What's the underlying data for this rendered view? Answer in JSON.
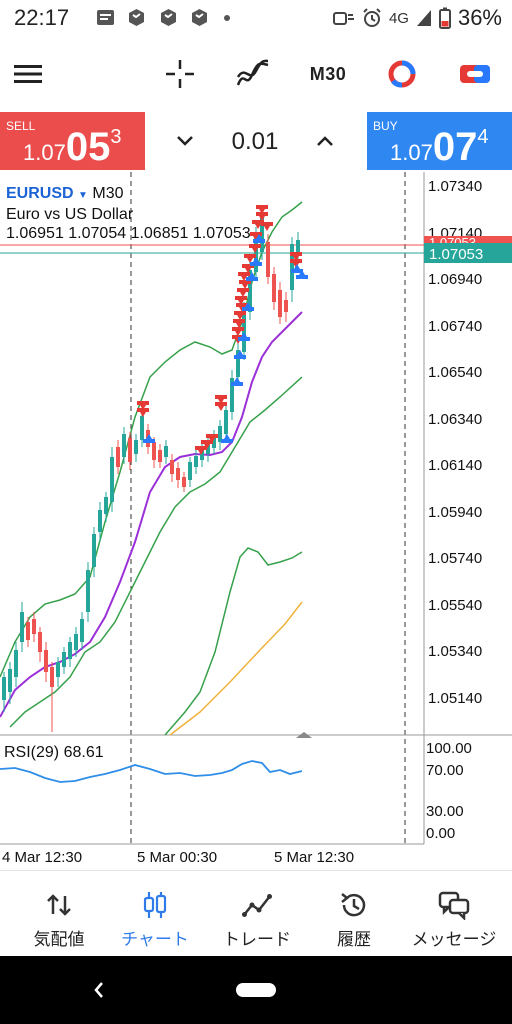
{
  "status_bar": {
    "time": "22:17",
    "network": "4G",
    "battery": "36%"
  },
  "toolbar": {
    "menu_icon": "hamburger-menu-icon",
    "crosshair_icon": "crosshair-icon",
    "indicators_icon": "indicator-icon",
    "timeframe": "M30",
    "objects_icon": "chart-objects-icon",
    "trade_icon": "trade-toggle-icon"
  },
  "trade_bar": {
    "sell_label": "SELL",
    "sell_small": "1.07",
    "sell_big": "05",
    "sell_sup": "3",
    "buy_label": "BUY",
    "buy_small": "1.07",
    "buy_big": "07",
    "buy_sup": "4",
    "volume": "0.01"
  },
  "chart": {
    "symbol": "EURUSD",
    "timeframe": "M30",
    "description": "Euro vs US Dollar",
    "ohlc": "1.06951 1.07054 1.06851 1.07053",
    "price_axis": [
      "1.07340",
      "1.07140",
      "1.06940",
      "1.06740",
      "1.06540",
      "1.06340",
      "1.06140",
      "1.05940",
      "1.05740",
      "1.05540",
      "1.05340",
      "1.05140"
    ],
    "current_price": "1.07053",
    "current_overlap": "1.07053",
    "rsi_label": "RSI(29) 68.61",
    "rsi_axis": [
      "100.00",
      "70.00",
      "30.00",
      "0.00"
    ],
    "time_axis": [
      "4 Mar 12:30",
      "5 Mar 00:30",
      "5 Mar 12:30"
    ],
    "colors": {
      "bull": "#26a69a",
      "bear": "#ef5350",
      "ma_fast": "#9b30d9",
      "bands": "#36a14a",
      "ma_slow": "#f0b23c",
      "rsi": "#2f8ee8",
      "sell_arrow": "#e53935",
      "buy_arrow": "#2979ff"
    }
  },
  "bottom_nav": {
    "items": [
      {
        "label": "気配値",
        "icon": "quotes-arrows-icon"
      },
      {
        "label": "チャート",
        "icon": "chart-candles-icon"
      },
      {
        "label": "トレード",
        "icon": "trade-line-icon"
      },
      {
        "label": "履歴",
        "icon": "history-clock-icon"
      },
      {
        "label": "メッセージ",
        "icon": "messages-icon"
      }
    ]
  }
}
